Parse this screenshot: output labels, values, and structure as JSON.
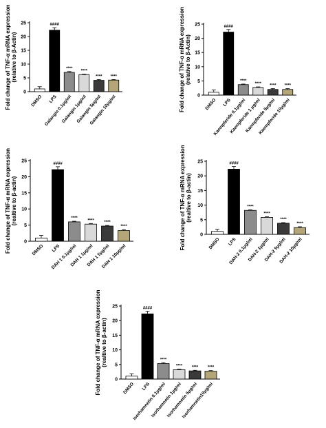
{
  "chart_data": [
    {
      "type": "bar",
      "ylabel_line1": "Fold change of TNF-α mRNA expression",
      "ylabel_line2": "(relative to β-Actin)",
      "ylim": [
        0,
        25
      ],
      "yticks": [
        0,
        5,
        10,
        15,
        20,
        25
      ],
      "categories": [
        "DMSO",
        "LPS",
        "Galangin 0.1μg/ml",
        "Galangin 1μg/ml",
        "Galangin 5μg/ml",
        "Galangin 10μg/ml"
      ],
      "values": [
        1.0,
        22.3,
        7.0,
        6.2,
        4.1,
        4.2
      ],
      "errors": [
        0.8,
        0.9,
        0.3,
        0.2,
        0.3,
        0.2
      ],
      "colors": [
        "#ffffff",
        "#000000",
        "#8c8c8c",
        "#d9d9d9",
        "#3a3a3a",
        "#b4a678"
      ],
      "annotations": [
        "",
        "####",
        "****",
        "****",
        "****",
        "****"
      ]
    },
    {
      "type": "bar",
      "ylabel_line1": "Fold change of TNF-α mRNA expression",
      "ylabel_line2": "(relative to β-Actin)",
      "ylim": [
        0,
        25
      ],
      "yticks": [
        0,
        5,
        10,
        15,
        20,
        25
      ],
      "categories": [
        "DMSO",
        "LPS",
        "Kaempferide 0.1μg/ml",
        "Kaempferide 1 μg/ml",
        "Kaempferide 5μg/ml",
        "Kaempferide 10μg/ml"
      ],
      "values": [
        1.0,
        22.2,
        3.7,
        2.7,
        2.0,
        2.0
      ],
      "errors": [
        0.8,
        0.9,
        0.2,
        0.2,
        0.3,
        0.3
      ],
      "colors": [
        "#ffffff",
        "#000000",
        "#8c8c8c",
        "#d9d9d9",
        "#3a3a3a",
        "#b4a678"
      ],
      "annotations": [
        "",
        "####",
        "****",
        "****",
        "****",
        "****"
      ]
    },
    {
      "type": "bar",
      "ylabel_line1": "Fold change of TNF-α mRNA expression",
      "ylabel_line2": "(realtive to β-actin)",
      "ylim": [
        0,
        25
      ],
      "yticks": [
        0,
        5,
        10,
        15,
        20,
        25
      ],
      "categories": [
        "DMSO",
        "LPS",
        "DAH 1 0.1μg/ml",
        "DAH 1 1μg/ml",
        "DAH 1 5μg/ml",
        "DAH 1 10μg/ml"
      ],
      "values": [
        1.0,
        22.2,
        6.0,
        5.3,
        4.7,
        3.3
      ],
      "errors": [
        0.8,
        0.9,
        0.2,
        0.2,
        0.2,
        0.3
      ],
      "colors": [
        "#ffffff",
        "#000000",
        "#8c8c8c",
        "#d9d9d9",
        "#3a3a3a",
        "#b4a678"
      ],
      "annotations": [
        "",
        "####",
        "****",
        "****",
        "****",
        "****"
      ]
    },
    {
      "type": "bar",
      "ylabel_line1": "Fold change of TNF-α mRNA expression",
      "ylabel_line2": "(realtive to β-actin)",
      "ylim": [
        0,
        25
      ],
      "yticks": [
        0,
        5,
        10,
        15,
        20,
        25
      ],
      "categories": [
        "DMSO",
        "LPS",
        "DAH-2 0.1μg/ml",
        "DAH-2  1μg/ml",
        "DAH-2  5μg/ml",
        "DAH-2 10μg/ml"
      ],
      "values": [
        1.0,
        22.3,
        8.2,
        5.8,
        3.8,
        2.3
      ],
      "errors": [
        0.8,
        0.9,
        0.2,
        0.2,
        0.2,
        0.3
      ],
      "colors": [
        "#ffffff",
        "#000000",
        "#8c8c8c",
        "#d9d9d9",
        "#3a3a3a",
        "#b4a678"
      ],
      "annotations": [
        "",
        "####",
        "****",
        "****",
        "****",
        "****"
      ]
    },
    {
      "type": "bar",
      "ylabel_line1": "Fold change of TNF-α mRNA expression",
      "ylabel_line2": "(realtive to β-actin)",
      "ylim": [
        0,
        25
      ],
      "yticks": [
        0,
        5,
        10,
        15,
        20,
        25
      ],
      "categories": [
        "DMSO",
        "LPS",
        "Isorhamnetin 0.1μg/ml",
        "Isorhamnetin 1μg/ml",
        "Isorhamnetin 5μg/ml",
        "Isorhamnetin10μg/ml"
      ],
      "values": [
        1.0,
        22.3,
        5.3,
        3.2,
        2.8,
        2.7
      ],
      "errors": [
        0.8,
        0.9,
        0.3,
        0.2,
        0.2,
        0.2
      ],
      "colors": [
        "#ffffff",
        "#000000",
        "#8c8c8c",
        "#d9d9d9",
        "#3a3a3a",
        "#b4a678"
      ],
      "annotations": [
        "",
        "####",
        "****",
        "****",
        "****",
        "****"
      ]
    }
  ]
}
